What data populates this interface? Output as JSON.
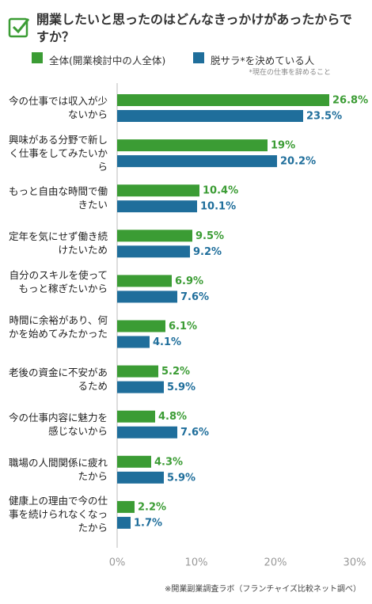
{
  "chart_data": {
    "type": "bar",
    "orientation": "horizontal",
    "title": "開業したいと思ったのはどんなきっかけがあったからですか？",
    "note": "*現在の仕事を辞めること",
    "source": "※開業副業調査ラボ（フランチャイズ比較ネット調べ）",
    "categories": [
      "今の仕事では収入が少ないから",
      "興味がある分野で新しく仕事をしてみたいから",
      "もっと自由な時間で働きたい",
      "定年を気にせず働き続けたいため",
      "自分のスキルを使ってもっと稼ぎたいから",
      "時間に余裕があり、何かを始めてみたかった",
      "老後の資金に不安があるため",
      "今の仕事内容に魅力を感じないから",
      "職場の人間関係に疲れたから",
      "健康上の理由で今の仕事を続けられなくなったから"
    ],
    "series": [
      {
        "name": "全体(開業検討中の人全体)",
        "color": "#3b9c34",
        "values": [
          26.8,
          19,
          10.4,
          9.5,
          6.9,
          6.1,
          5.2,
          4.8,
          4.3,
          2.2
        ],
        "value_labels": [
          "26.8%",
          "19%",
          "10.4%",
          "9.5%",
          "6.9%",
          "6.1%",
          "5.2%",
          "4.8%",
          "4.3%",
          "2.2%"
        ]
      },
      {
        "name": "脱サラ*を決めている人",
        "color": "#1f6e9b",
        "values": [
          23.5,
          20.2,
          10.1,
          9.2,
          7.6,
          4.1,
          5.9,
          7.6,
          5.9,
          1.7
        ],
        "value_labels": [
          "23.5%",
          "20.2%",
          "10.1%",
          "9.2%",
          "7.6%",
          "4.1%",
          "5.9%",
          "7.6%",
          "5.9%",
          "1.7%"
        ]
      }
    ],
    "xlim": [
      0,
      30
    ],
    "xticks": [
      {
        "value": 0,
        "label": "0%"
      },
      {
        "value": 10,
        "label": "10%"
      },
      {
        "value": 20,
        "label": "20%"
      },
      {
        "value": 30,
        "label": "30%"
      }
    ],
    "grid": false
  }
}
